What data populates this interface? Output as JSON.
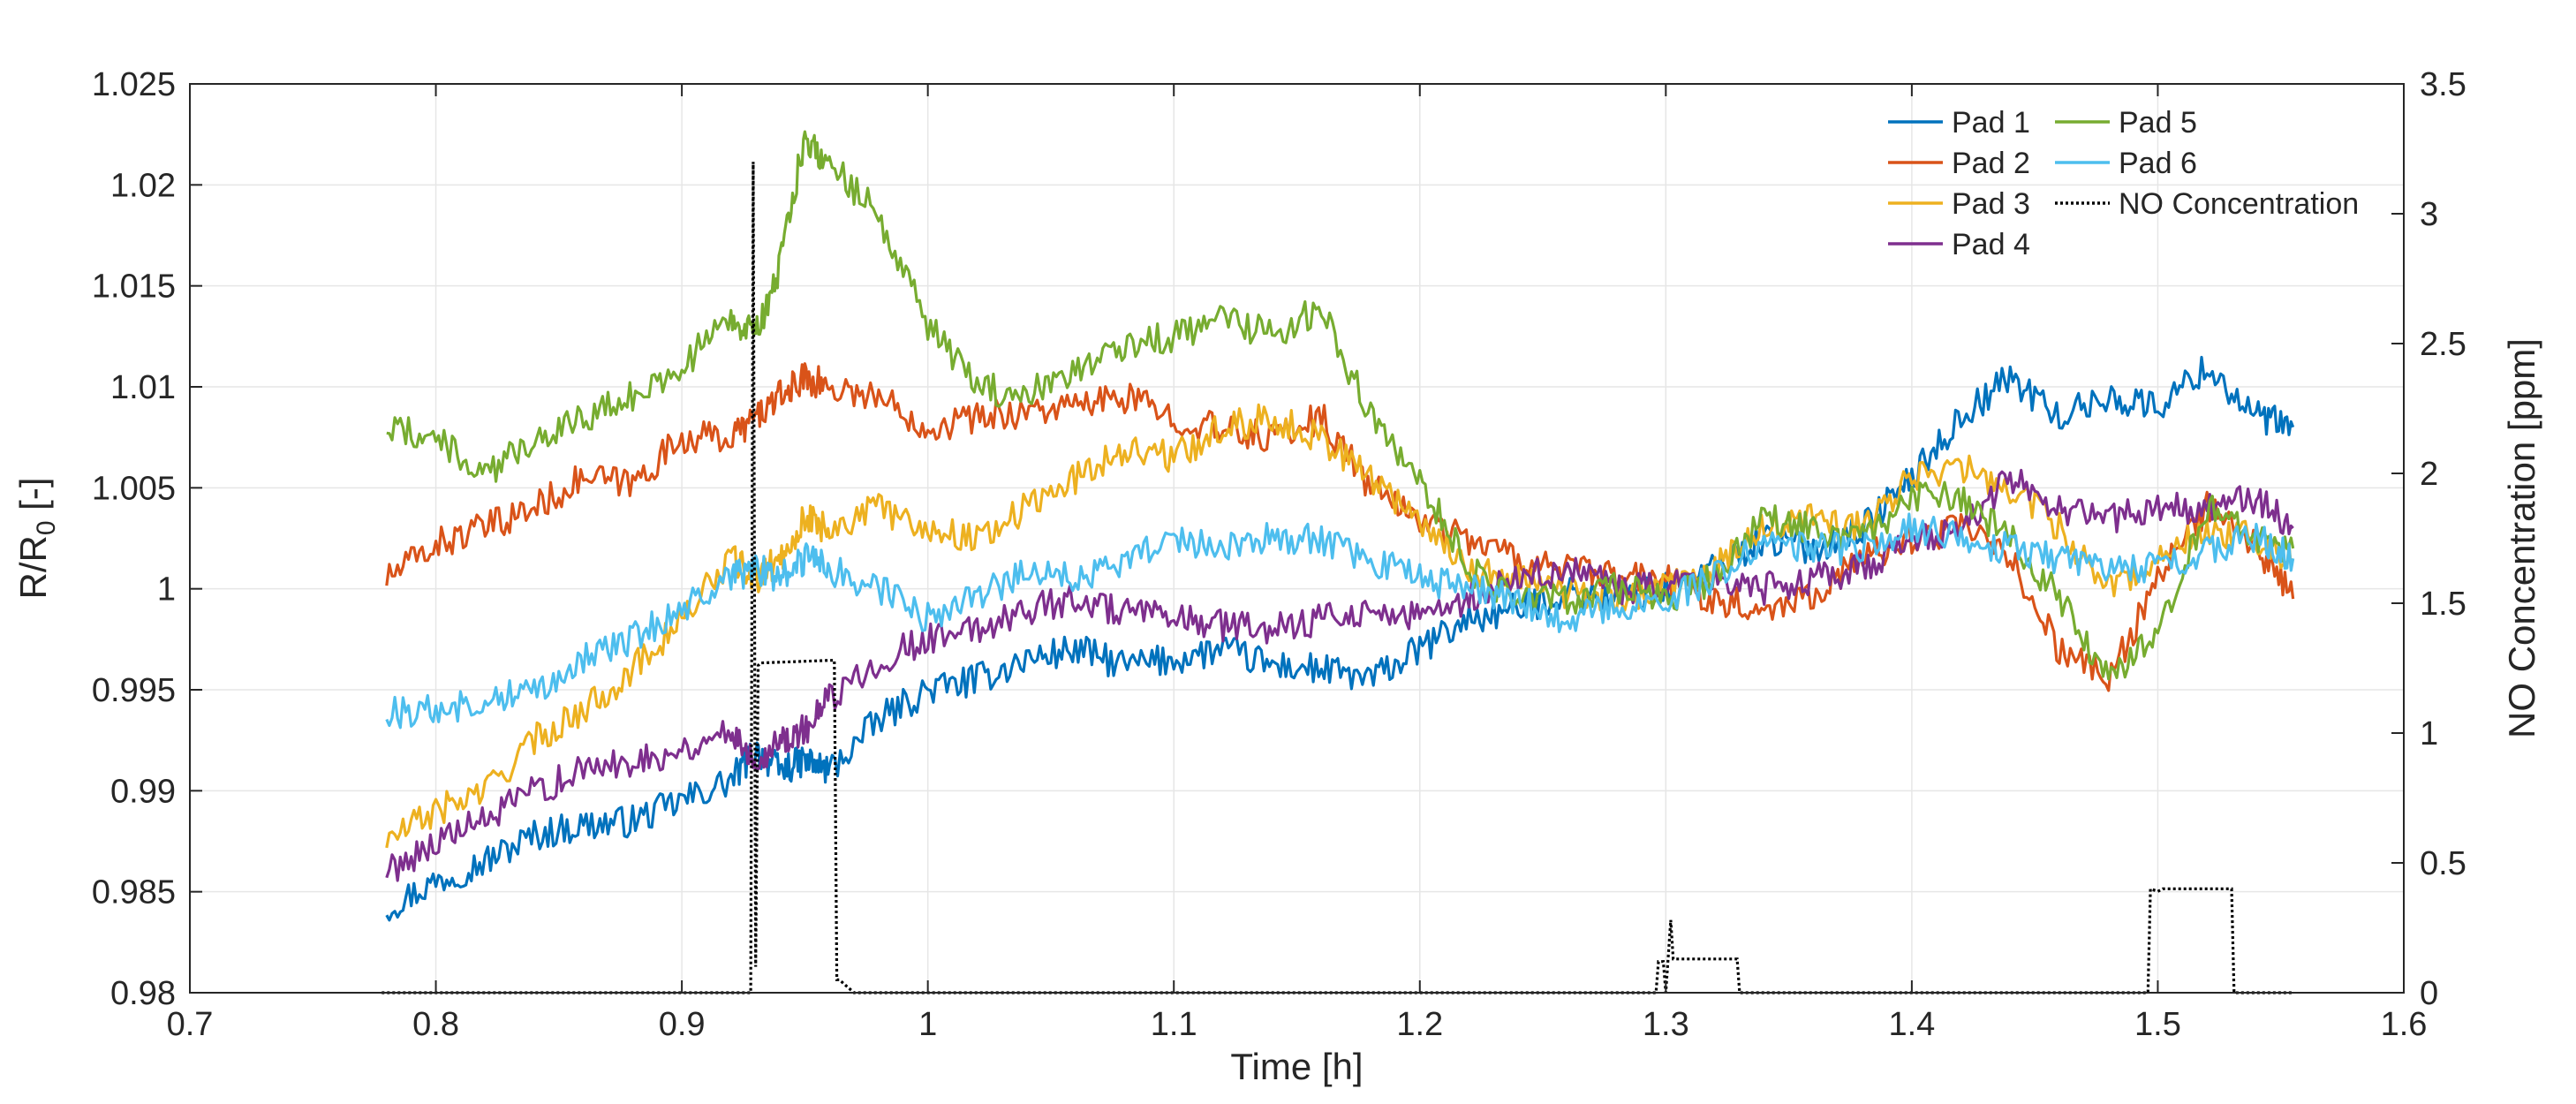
{
  "chart_data": {
    "type": "line",
    "title": "",
    "xlabel": "Time [h]",
    "ylabel": "R/R0 [-]",
    "ylabel_main": "R/R",
    "ylabel_sub": "0",
    "ylabel_tail": " [-]",
    "y2label": "NO Concentration [ppm]",
    "xlim": [
      0.7,
      1.6
    ],
    "ylim": [
      0.98,
      1.025
    ],
    "y2lim": [
      0,
      3.5
    ],
    "grid": true,
    "legend_position": "top-right",
    "x_ticks": [
      "0.7",
      "0.8",
      "0.9",
      "1",
      "1.1",
      "1.2",
      "1.3",
      "1.4",
      "1.5",
      "1.6"
    ],
    "y_ticks": [
      "0.98",
      "0.985",
      "0.99",
      "0.995",
      "1",
      "1.005",
      "1.01",
      "1.015",
      "1.02",
      "1.025"
    ],
    "y2_ticks": [
      "0",
      "0.5",
      "1",
      "1.5",
      "2",
      "2.5",
      "3",
      "3.5"
    ],
    "x": [
      0.78,
      0.8,
      0.82,
      0.84,
      0.86,
      0.88,
      0.9,
      0.92,
      0.93,
      0.94,
      0.95,
      0.96,
      0.98,
      1.0,
      1.02,
      1.04,
      1.06,
      1.08,
      1.1,
      1.12,
      1.14,
      1.16,
      1.18,
      1.2,
      1.22,
      1.24,
      1.26,
      1.28,
      1.3,
      1.32,
      1.34,
      1.36,
      1.38,
      1.4,
      1.42,
      1.44,
      1.46,
      1.48,
      1.5,
      1.52,
      1.54,
      1.555
    ],
    "series": [
      {
        "name": "Pad 1",
        "color": "#0072BD",
        "axis": "left",
        "style": "solid",
        "values": [
          0.9842,
          0.9855,
          0.9865,
          0.9878,
          0.9883,
          0.9885,
          0.9895,
          0.9905,
          0.992,
          0.991,
          0.9915,
          0.991,
          0.9935,
          0.995,
          0.9955,
          0.9965,
          0.997,
          0.9962,
          0.9965,
          0.997,
          0.9962,
          0.996,
          0.9955,
          0.997,
          0.9985,
          0.999,
          0.9998,
          0.9995,
          1.0,
          1.001,
          1.0025,
          1.002,
          1.003,
          1.0055,
          1.0085,
          1.0105,
          1.0085,
          1.0095,
          1.009,
          1.011,
          1.0085,
          1.008
        ]
      },
      {
        "name": "Pad 2",
        "color": "#D95319",
        "axis": "left",
        "style": "solid",
        "values": [
          1.0005,
          1.0022,
          1.003,
          1.004,
          1.0055,
          1.0052,
          1.0075,
          1.0075,
          1.0085,
          1.0095,
          1.0105,
          1.01,
          1.0095,
          1.008,
          1.0085,
          1.0088,
          1.009,
          1.0095,
          1.0085,
          1.0078,
          1.0075,
          1.0085,
          1.005,
          1.0035,
          1.0025,
          1.0015,
          1.001,
          1.0005,
          1.0005,
          0.9995,
          0.999,
          0.9998,
          1.0015,
          1.0025,
          1.003,
          1.0015,
          0.997,
          0.9955,
          1.0005,
          1.004,
          1.002,
          0.9995
        ]
      },
      {
        "name": "Pad 3",
        "color": "#EDB120",
        "axis": "left",
        "style": "solid",
        "values": [
          0.9875,
          0.989,
          0.99,
          0.9925,
          0.994,
          0.996,
          0.9985,
          1.0015,
          1.0005,
          1.0015,
          1.0035,
          1.003,
          1.004,
          1.003,
          1.0025,
          1.004,
          1.0055,
          1.007,
          1.0065,
          1.008,
          1.0085,
          1.0075,
          1.0055,
          1.0035,
          1.001,
          1.0005,
          0.9998,
          0.9995,
          1.0,
          1.001,
          1.003,
          1.0035,
          1.003,
          1.0055,
          1.006,
          1.005,
          1.003,
          1.0,
          1.0015,
          1.003,
          1.0025,
          1.0015
        ]
      },
      {
        "name": "Pad 4",
        "color": "#7E2F8E",
        "axis": "left",
        "style": "solid",
        "values": [
          0.986,
          0.9875,
          0.9885,
          0.99,
          0.991,
          0.9915,
          0.992,
          0.993,
          0.9915,
          0.9925,
          0.993,
          0.9945,
          0.9965,
          0.9975,
          0.998,
          0.999,
          0.9995,
          0.9988,
          0.9985,
          0.9982,
          0.998,
          0.9985,
          0.999,
          0.9985,
          0.9995,
          1.0005,
          1.001,
          1.0,
          1.0,
          1.0005,
          1.0,
          1.0005,
          1.001,
          1.0025,
          1.003,
          1.0055,
          1.004,
          1.0035,
          1.004,
          1.004,
          1.0045,
          1.003
        ]
      },
      {
        "name": "Pad 5",
        "color": "#77AC30",
        "axis": "left",
        "style": "solid",
        "values": [
          1.008,
          1.0075,
          1.0055,
          1.0075,
          1.0085,
          1.0095,
          1.011,
          1.0135,
          1.0125,
          1.016,
          1.0225,
          1.021,
          1.0185,
          1.013,
          1.01,
          1.0095,
          1.011,
          1.012,
          1.0125,
          1.0135,
          1.0125,
          1.014,
          1.0085,
          1.0055,
          1.001,
          0.9995,
          0.9995,
          1.0,
          0.9995,
          1.0005,
          1.0035,
          1.003,
          1.0025,
          1.0045,
          1.0045,
          1.0025,
          0.9995,
          0.9955,
          0.998,
          1.004,
          1.0025,
          1.002
        ]
      },
      {
        "name": "Pad 6",
        "color": "#4DBEEE",
        "axis": "left",
        "style": "solid",
        "values": [
          0.9938,
          0.994,
          0.9945,
          0.995,
          0.9965,
          0.9975,
          0.999,
          1.0005,
          1.001,
          1.0005,
          1.0015,
          1.001,
          1.0,
          0.9985,
          0.9995,
          1.001,
          1.0005,
          1.0015,
          1.0025,
          1.002,
          1.0025,
          1.0025,
          1.0015,
          1.0005,
          1.0,
          0.9995,
          0.9985,
          0.999,
          0.9995,
          1.0005,
          1.0025,
          1.002,
          1.002,
          1.003,
          1.0025,
          1.002,
          1.0015,
          1.001,
          1.001,
          1.002,
          1.0025,
          1.0015
        ]
      },
      {
        "name": "NO Concentration",
        "color": "#000000",
        "axis": "right",
        "style": "dotted",
        "x": [
          0.778,
          0.928,
          0.929,
          0.93,
          0.931,
          0.932,
          0.96,
          0.962,
          0.963,
          0.964,
          0.97,
          1.296,
          1.297,
          1.299,
          1.3,
          1.302,
          1.303,
          1.305,
          1.328,
          1.329,
          1.33,
          1.496,
          1.497,
          1.5,
          1.502,
          1.53,
          1.531,
          1.555
        ],
        "values": [
          0,
          0,
          3.2,
          0.1,
          1.26,
          1.27,
          1.28,
          1.28,
          0.05,
          0.05,
          0,
          0,
          0.12,
          0.12,
          0,
          0.28,
          0.13,
          0.13,
          0.13,
          0.13,
          0,
          0,
          0.4,
          0.39,
          0.4,
          0.4,
          0,
          0
        ]
      }
    ]
  }
}
